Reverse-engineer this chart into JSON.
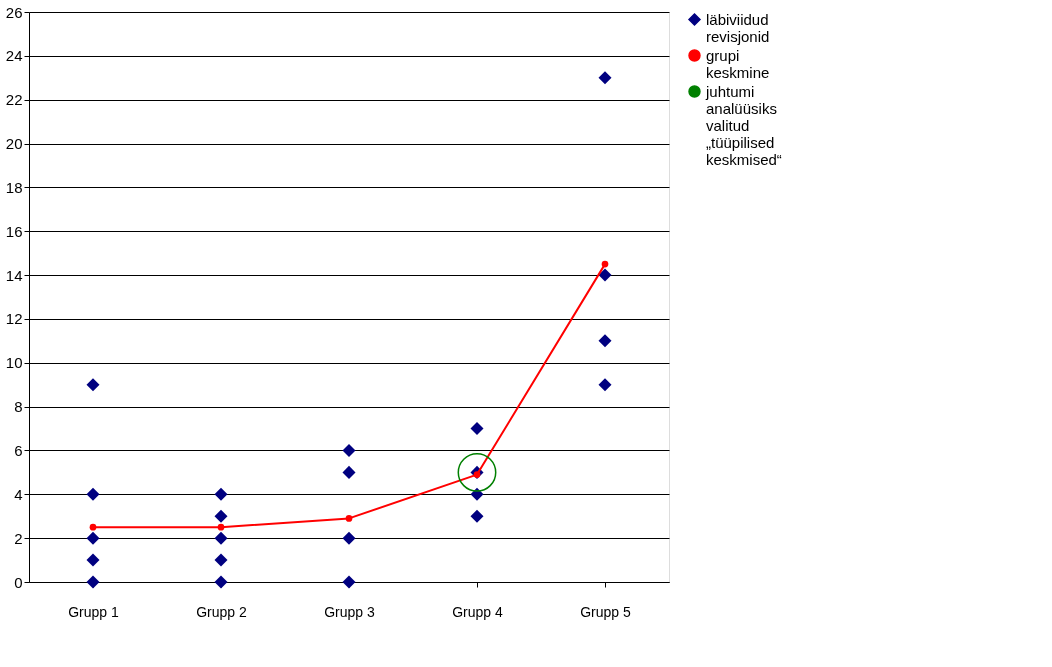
{
  "chart_data": {
    "type": "scatter",
    "categories": [
      "Grupp 1",
      "Grupp 2",
      "Grupp 3",
      "Grupp 4",
      "Grupp 5"
    ],
    "ylim": [
      0,
      26
    ],
    "yticks": [
      0,
      2,
      4,
      6,
      8,
      10,
      12,
      14,
      16,
      18,
      20,
      22,
      24,
      26
    ],
    "grid": "y",
    "legend": "right",
    "series": [
      {
        "name": "läbiviidud revisjonid",
        "marker": "diamond",
        "color": "#000080",
        "x": [
          "Grupp 1",
          "Grupp 1",
          "Grupp 1",
          "Grupp 1",
          "Grupp 1",
          "Grupp 2",
          "Grupp 2",
          "Grupp 2",
          "Grupp 2",
          "Grupp 2",
          "Grupp 3",
          "Grupp 3",
          "Grupp 3",
          "Grupp 3",
          "Grupp 4",
          "Grupp 4",
          "Grupp 4",
          "Grupp 4",
          "Grupp 5",
          "Grupp 5",
          "Grupp 5",
          "Grupp 5"
        ],
        "values": [
          9,
          4,
          2,
          1,
          0,
          4,
          3,
          2,
          1,
          0,
          6,
          5,
          2,
          0,
          7,
          5,
          4,
          3,
          23,
          14,
          11,
          9
        ]
      },
      {
        "name": "grupi keskmine",
        "type": "line",
        "marker": "circle",
        "color": "#ff0000",
        "values": [
          2.5,
          2.5,
          2.9,
          4.9,
          14.5
        ]
      },
      {
        "name": "juhtumi analüüsiks valitud „tüüpilised keskmised“",
        "marker": "circle",
        "color": "#008000",
        "x": [
          "Grupp 4"
        ],
        "values": [
          5
        ]
      }
    ]
  }
}
